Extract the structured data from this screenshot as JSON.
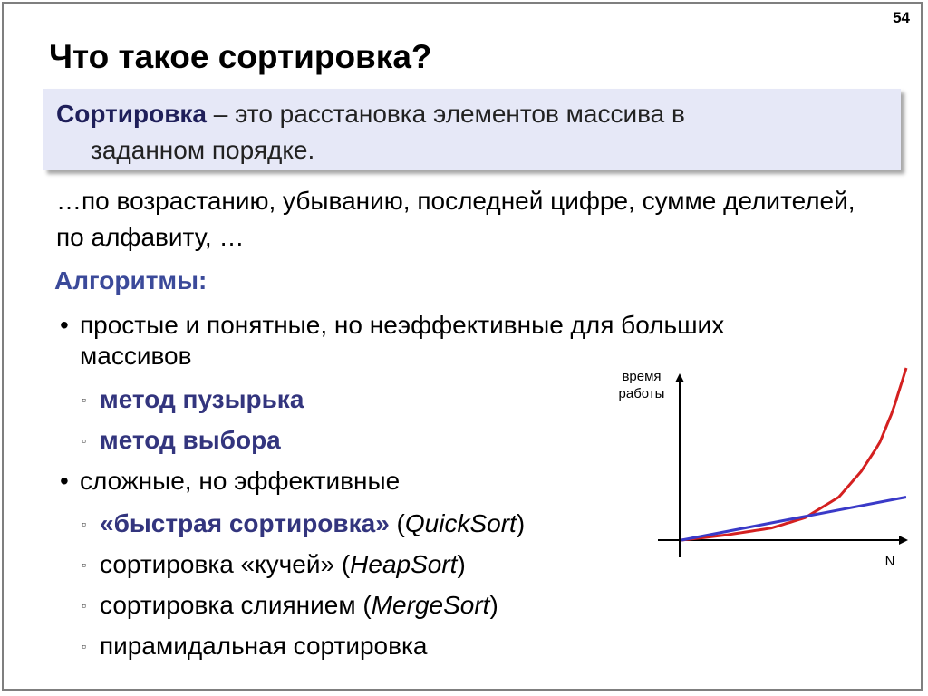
{
  "page_number": "54",
  "title": "Что такое сортировка?",
  "definition": {
    "term": "Сортировка",
    "rest_line1": " – это расстановка элементов массива в",
    "rest_line2": "заданном порядке."
  },
  "orders": "…по возрастанию, убыванию, последней цифре, сумме делителей, по алфавиту, …",
  "algorithms_heading": "Алгоритмы:",
  "groups": [
    {
      "bullet": "•",
      "label_line1": "простые и понятные, но неэффективные для больших",
      "label_line2": "массивов",
      "items": [
        {
          "marker": "▫",
          "bold": "метод пузырька",
          "plain": "",
          "italic": "",
          "tail": ""
        },
        {
          "marker": "▫",
          "bold": "метод выбора",
          "plain": "",
          "italic": "",
          "tail": ""
        }
      ]
    },
    {
      "bullet": "•",
      "label_line1": "сложные, но эффективные",
      "items": [
        {
          "marker": "▫",
          "bold": "«быстрая сортировка»",
          "plain": " (",
          "italic": "QuickSort",
          "tail": ")"
        },
        {
          "marker": "▫",
          "bold": "",
          "plain": "сортировка «кучей» (",
          "italic": "HeapSort",
          "tail": ")"
        },
        {
          "marker": "▫",
          "bold": "",
          "plain": "сортировка слиянием (",
          "italic": "MergeSort",
          "tail": ")"
        },
        {
          "marker": "▫",
          "bold": "",
          "plain": "пирамидальная сортировка",
          "italic": "",
          "tail": ""
        }
      ]
    }
  ],
  "chart_data": {
    "type": "line",
    "title": "",
    "ylabel_line1": "время",
    "ylabel_line2": "работы",
    "xlabel": "N",
    "grid": false,
    "legend": "none",
    "series": [
      {
        "color": "#d42020",
        "curve": "exponential",
        "x": [
          0,
          0.2,
          0.4,
          0.55,
          0.7,
          0.8,
          0.88,
          0.94,
          1.0
        ],
        "y": [
          0,
          0.03,
          0.07,
          0.13,
          0.25,
          0.4,
          0.56,
          0.75,
          1.0
        ]
      },
      {
        "color": "#3a3ac8",
        "curve": "linear",
        "x": [
          0,
          1.0
        ],
        "y": [
          0,
          0.25
        ]
      }
    ]
  },
  "colors": {
    "accent": "#3b4a9a",
    "bold_items": "#33357e",
    "definition_bg": "#e6e8f7"
  }
}
